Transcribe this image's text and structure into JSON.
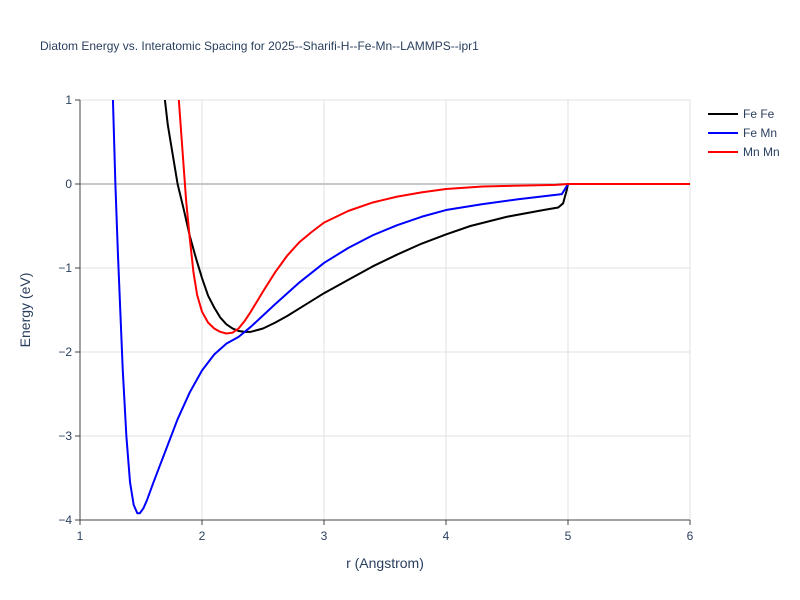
{
  "chart_data": {
    "type": "line",
    "title": "Diatom Energy vs. Interatomic Spacing for 2025--Sharifi-H--Fe-Mn--LAMMPS--ipr1",
    "xlabel": "r (Angstrom)",
    "ylabel": "Energy (eV)",
    "xlim": [
      1,
      6
    ],
    "ylim": [
      -4,
      1
    ],
    "xticks": [
      1,
      2,
      3,
      4,
      5,
      6
    ],
    "xtick_labels": [
      "1",
      "2",
      "3",
      "4",
      "5",
      "6"
    ],
    "yticks": [
      1,
      0,
      -1,
      -2,
      -3,
      -4
    ],
    "ytick_labels": [
      "1",
      "0",
      "−1",
      "−2",
      "−3",
      "−4"
    ],
    "grid": true,
    "legend_position": "top-right",
    "series": [
      {
        "name": "Fe Fe",
        "color": "#000000",
        "x": [
          1.68,
          1.72,
          1.76,
          1.8,
          1.85,
          1.9,
          1.95,
          2.0,
          2.05,
          2.1,
          2.15,
          2.2,
          2.25,
          2.3,
          2.35,
          2.4,
          2.5,
          2.6,
          2.7,
          2.8,
          3.0,
          3.2,
          3.4,
          3.6,
          3.8,
          4.0,
          4.2,
          4.5,
          4.8,
          4.92,
          4.96,
          4.99,
          5.0,
          5.5,
          6.0
        ],
        "y": [
          1.2,
          0.7,
          0.35,
          0.0,
          -0.3,
          -0.62,
          -0.88,
          -1.12,
          -1.33,
          -1.47,
          -1.59,
          -1.67,
          -1.72,
          -1.75,
          -1.76,
          -1.76,
          -1.72,
          -1.65,
          -1.57,
          -1.48,
          -1.3,
          -1.14,
          -0.98,
          -0.84,
          -0.71,
          -0.6,
          -0.5,
          -0.39,
          -0.31,
          -0.28,
          -0.23,
          -0.07,
          0.0,
          0.0,
          0.0
        ]
      },
      {
        "name": "Fe Mn",
        "color": "#0000ff",
        "x": [
          1.27,
          1.29,
          1.31,
          1.33,
          1.35,
          1.38,
          1.41,
          1.44,
          1.47,
          1.49,
          1.52,
          1.55,
          1.6,
          1.65,
          1.7,
          1.8,
          1.9,
          2.0,
          2.1,
          2.2,
          2.3,
          2.4,
          2.6,
          2.8,
          3.0,
          3.2,
          3.4,
          3.6,
          3.8,
          4.0,
          4.3,
          4.6,
          4.95,
          5.0,
          5.5,
          6.0
        ],
        "y": [
          1.0,
          0.0,
          -0.8,
          -1.5,
          -2.2,
          -3.0,
          -3.55,
          -3.82,
          -3.92,
          -3.92,
          -3.86,
          -3.76,
          -3.56,
          -3.37,
          -3.18,
          -2.8,
          -2.48,
          -2.22,
          -2.03,
          -1.9,
          -1.82,
          -1.7,
          -1.43,
          -1.17,
          -0.94,
          -0.76,
          -0.61,
          -0.49,
          -0.39,
          -0.31,
          -0.24,
          -0.18,
          -0.12,
          0.0,
          0.0,
          0.0
        ]
      },
      {
        "name": "Mn Mn",
        "color": "#ff0000",
        "x": [
          1.81,
          1.83,
          1.85,
          1.87,
          1.9,
          1.93,
          1.96,
          2.0,
          2.05,
          2.1,
          2.15,
          2.2,
          2.25,
          2.3,
          2.35,
          2.4,
          2.5,
          2.6,
          2.7,
          2.8,
          2.9,
          3.0,
          3.2,
          3.4,
          3.6,
          3.8,
          4.0,
          4.3,
          4.6,
          4.9,
          5.0,
          5.5,
          6.0
        ],
        "y": [
          1.0,
          0.6,
          0.2,
          -0.2,
          -0.65,
          -1.05,
          -1.32,
          -1.52,
          -1.65,
          -1.72,
          -1.76,
          -1.78,
          -1.77,
          -1.72,
          -1.63,
          -1.52,
          -1.28,
          -1.05,
          -0.85,
          -0.69,
          -0.57,
          -0.46,
          -0.32,
          -0.22,
          -0.15,
          -0.1,
          -0.06,
          -0.03,
          -0.02,
          -0.01,
          0.0,
          0.0,
          0.0
        ]
      }
    ]
  }
}
